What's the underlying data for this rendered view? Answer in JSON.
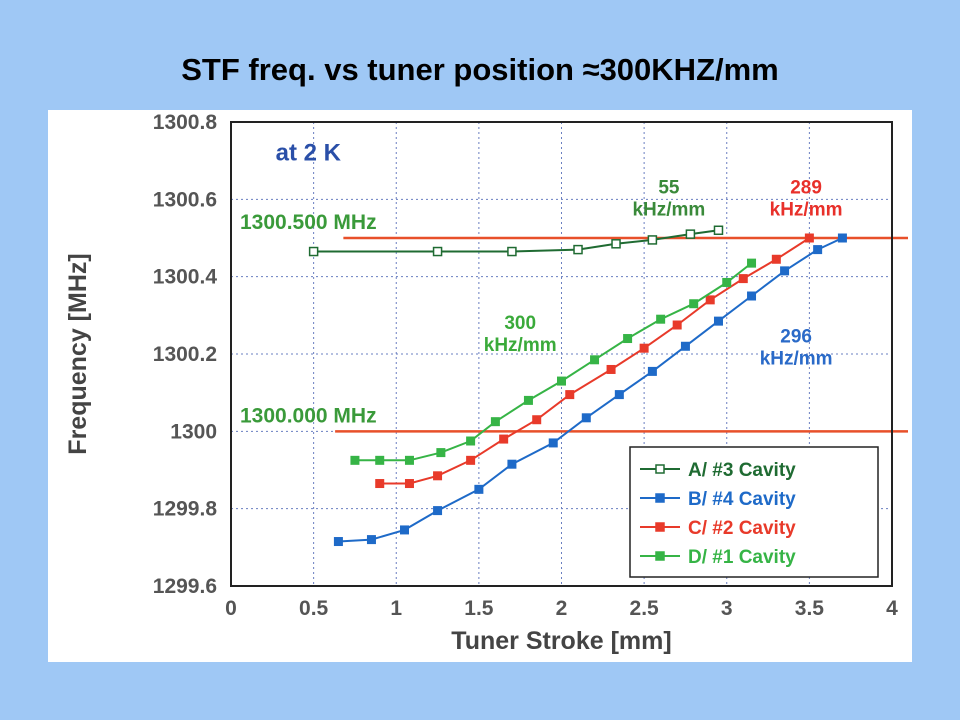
{
  "slide": {
    "title": "STF freq. vs tuner position ≈300KHZ/mm",
    "background": "#9fc8f5"
  },
  "chart_data": {
    "type": "line",
    "xlabel": "Tuner Stroke [mm]",
    "ylabel": "Frequency [MHz]",
    "xlim": [
      0,
      4
    ],
    "ylim": [
      1299.6,
      1300.8
    ],
    "x_ticks": [
      "0",
      "0.5",
      "1",
      "1.5",
      "2",
      "2.5",
      "3",
      "3.5",
      "4"
    ],
    "y_ticks": [
      "1299.6",
      "1299.8",
      "1300",
      "1300.2",
      "1300.4",
      "1300.6",
      "1300.8"
    ],
    "grid": true,
    "grid_style": "dotted",
    "legend_position": "bottom-right",
    "reference_lines": [
      {
        "label": "1300.500 MHz",
        "y": 1300.5,
        "x_start": 0.68,
        "color": "#e8502a"
      },
      {
        "label": "1300.000 MHz",
        "y": 1300.0,
        "x_start": 0.63,
        "color": "#e8502a"
      }
    ],
    "annotations": [
      {
        "lines": [
          "at 2 K"
        ],
        "color": "#2a4fa8",
        "x": 0.27,
        "y": 1300.7
      },
      {
        "lines": [
          "55",
          "kHz/mm"
        ],
        "color": "#3a8a3a",
        "x": 2.65,
        "y": 1300.615
      },
      {
        "lines": [
          "289",
          "kHz/mm"
        ],
        "color": "#e8302a",
        "x": 3.48,
        "y": 1300.615
      },
      {
        "lines": [
          "300",
          "kHz/mm"
        ],
        "color": "#3aaa3a",
        "x": 1.75,
        "y": 1300.265
      },
      {
        "lines": [
          "296",
          "kHz/mm"
        ],
        "color": "#2a6ac8",
        "x": 3.42,
        "y": 1300.23
      }
    ],
    "series": [
      {
        "name": "A/ #3 Cavity",
        "color": "#1f6b32",
        "marker": "open-square",
        "x": [
          0.5,
          1.25,
          1.7,
          2.1,
          2.33,
          2.55,
          2.78,
          2.95
        ],
        "y": [
          1300.465,
          1300.465,
          1300.465,
          1300.47,
          1300.485,
          1300.495,
          1300.51,
          1300.52
        ]
      },
      {
        "name": "B/ #4 Cavity",
        "color": "#1e6ac8",
        "marker": "filled-square",
        "x": [
          0.65,
          0.85,
          1.05,
          1.25,
          1.5,
          1.7,
          1.95,
          2.15,
          2.35,
          2.55,
          2.75,
          2.95,
          3.15,
          3.35,
          3.55,
          3.7
        ],
        "y": [
          1299.715,
          1299.72,
          1299.745,
          1299.795,
          1299.85,
          1299.915,
          1299.97,
          1300.035,
          1300.095,
          1300.155,
          1300.22,
          1300.285,
          1300.35,
          1300.415,
          1300.47,
          1300.5
        ]
      },
      {
        "name": "C/ #2 Cavity",
        "color": "#e83a2a",
        "marker": "filled-square",
        "x": [
          0.9,
          1.08,
          1.25,
          1.45,
          1.65,
          1.85,
          2.05,
          2.3,
          2.5,
          2.7,
          2.9,
          3.1,
          3.3,
          3.5
        ],
        "y": [
          1299.865,
          1299.865,
          1299.885,
          1299.925,
          1299.98,
          1300.03,
          1300.095,
          1300.16,
          1300.215,
          1300.275,
          1300.34,
          1300.395,
          1300.445,
          1300.5
        ]
      },
      {
        "name": "D/ #1 Cavity",
        "color": "#36b446",
        "marker": "filled-square",
        "x": [
          0.75,
          0.9,
          1.08,
          1.27,
          1.45,
          1.6,
          1.8,
          2.0,
          2.2,
          2.4,
          2.6,
          2.8,
          3.0,
          3.15
        ],
        "y": [
          1299.925,
          1299.925,
          1299.925,
          1299.945,
          1299.975,
          1300.025,
          1300.08,
          1300.13,
          1300.185,
          1300.24,
          1300.29,
          1300.33,
          1300.385,
          1300.435
        ]
      }
    ]
  }
}
